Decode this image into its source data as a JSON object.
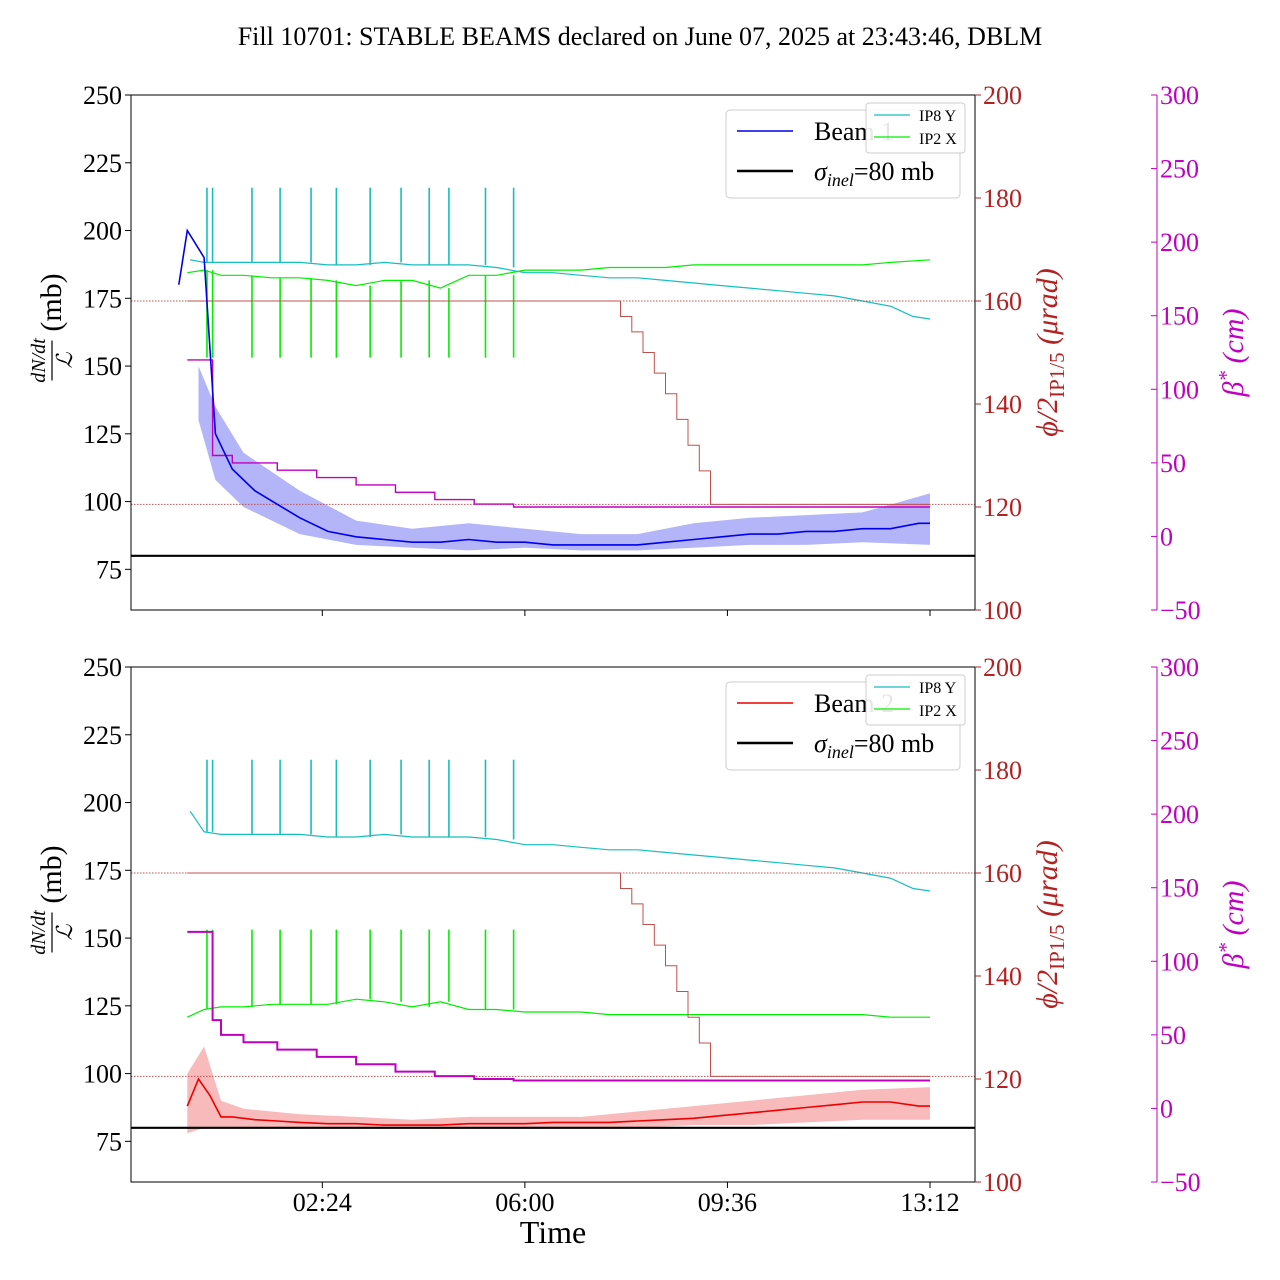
{
  "figure": {
    "title": "Fill 10701: STABLE BEAMS declared on June 07, 2025 at 23:43:46, DBLM",
    "xlabel": "Time",
    "x_ticks": [
      {
        "t": 2.4,
        "label": "02:24"
      },
      {
        "t": 6.0,
        "label": "06:00"
      },
      {
        "t": 9.6,
        "label": "09:36"
      },
      {
        "t": 13.2,
        "label": "13:12"
      }
    ],
    "left_ylabel": "dN/dt / ℒ (mb)",
    "left_ylabel_parts": {
      "numerator": "dN/dt",
      "denominator": "ℒ",
      "unit": "(mb)"
    },
    "right1_ylabel": "ϕ/2IP1/5 (μrad)",
    "right1_ylabel_parts": {
      "main": "ϕ/2",
      "sub": "IP1/5",
      "unit": "(μrad)"
    },
    "right2_ylabel": "β* (cm)",
    "right2_ylabel_parts": {
      "main": "β",
      "sup": "*",
      "unit": "(cm)"
    },
    "sigma_label_parts": {
      "sym": "σ",
      "sub": "inel",
      "rest": "=80 mb"
    }
  },
  "colors": {
    "beam1": "#0000ee",
    "beam1_band": "#9b9bf5",
    "beam2": "#ee0000",
    "beam2_band": "#f5a3a3",
    "ip8": "#17bebe",
    "ip2": "#00ee00",
    "crossing": "#c0504d",
    "crossing_axis": "#b22222",
    "beta": "#c000c0",
    "sigma": "#000000"
  },
  "chart_data": [
    {
      "type": "line",
      "panel": "top",
      "x_unit": "hours",
      "left_axis": {
        "ylim": [
          60,
          250
        ],
        "ticks": [
          75,
          100,
          125,
          150,
          175,
          200,
          225,
          250
        ]
      },
      "right_axis_1": {
        "ylim": [
          100,
          200
        ],
        "ticks": [
          100,
          120,
          140,
          160,
          180,
          200
        ]
      },
      "right_axis_2": {
        "ylim": [
          -50,
          300
        ],
        "ticks": [
          -50,
          0,
          50,
          100,
          150,
          200,
          250,
          300
        ]
      },
      "legend_main": [
        "Beam 1",
        "σinel=80 mb"
      ],
      "legend_small": [
        "IP8 Y",
        "IP2 X"
      ],
      "series": [
        {
          "name": "Beam 1",
          "axis": "left",
          "role": "beam",
          "x": [
            -0.15,
            0.0,
            0.3,
            0.5,
            0.8,
            1.2,
            1.6,
            2.0,
            2.5,
            3.0,
            3.5,
            4.0,
            4.5,
            5.0,
            5.5,
            6.0,
            6.5,
            7.0,
            7.5,
            8.0,
            8.5,
            9.0,
            9.5,
            10.0,
            10.5,
            11.0,
            11.5,
            12.0,
            12.5,
            13.0,
            13.2
          ],
          "y": [
            180,
            200,
            190,
            125,
            112,
            104,
            99,
            94,
            89,
            87,
            86,
            85,
            85,
            86,
            85,
            85,
            84,
            84,
            84,
            84,
            85,
            86,
            87,
            88,
            88,
            89,
            89,
            90,
            90,
            92,
            92
          ]
        },
        {
          "name": "Beam 1 band upper",
          "axis": "left",
          "role": "band_upper",
          "x": [
            0.2,
            0.5,
            1.0,
            2.0,
            3.0,
            4.0,
            5.0,
            6.0,
            7.0,
            8.0,
            9.0,
            10.0,
            11.0,
            12.0,
            13.2
          ],
          "y": [
            150,
            135,
            118,
            104,
            93,
            90,
            92,
            90,
            88,
            88,
            92,
            94,
            95,
            96,
            103
          ]
        },
        {
          "name": "Beam 1 band lower",
          "axis": "left",
          "role": "band_lower",
          "x": [
            0.2,
            0.5,
            1.0,
            2.0,
            3.0,
            4.0,
            5.0,
            6.0,
            7.0,
            8.0,
            9.0,
            10.0,
            11.0,
            12.0,
            13.2
          ],
          "y": [
            130,
            108,
            98,
            88,
            84,
            83,
            82,
            83,
            82,
            82,
            83,
            84,
            84,
            85,
            84
          ]
        },
        {
          "name": "IP8 Y",
          "axis": "right1",
          "role": "ip8",
          "x": [
            0.05,
            0.3,
            0.6,
            1.0,
            1.5,
            2.0,
            2.5,
            3.0,
            3.5,
            4.0,
            4.5,
            5.0,
            5.5,
            6.0,
            6.5,
            7.0,
            7.5,
            8.0,
            8.5,
            9.0,
            9.5,
            10.0,
            10.5,
            11.0,
            11.5,
            12.0,
            12.5,
            12.9,
            13.2
          ],
          "y": [
            168,
            167.5,
            167.5,
            167.5,
            167.5,
            167.5,
            167,
            167,
            167.5,
            167,
            167,
            167,
            166.5,
            165.5,
            165.5,
            165,
            164.5,
            164.5,
            164,
            163.5,
            163,
            162.5,
            162,
            161.5,
            161,
            160,
            159,
            157,
            156.5
          ],
          "spike_x": [
            0.35,
            0.45,
            1.15,
            1.65,
            2.2,
            2.65,
            3.25,
            3.8,
            4.3,
            4.65,
            5.3,
            5.8
          ],
          "spike_y": 182
        },
        {
          "name": "IP2 X",
          "axis": "right1",
          "role": "ip2",
          "x": [
            0.0,
            0.3,
            0.6,
            1.0,
            1.5,
            2.0,
            2.5,
            3.0,
            3.5,
            4.0,
            4.5,
            5.0,
            5.5,
            6.0,
            6.5,
            7.0,
            7.5,
            8.0,
            8.5,
            9.0,
            9.5,
            10.0,
            10.5,
            11.0,
            11.5,
            12.0,
            12.5,
            13.2
          ],
          "y": [
            165.5,
            166,
            165,
            165,
            164.5,
            164.5,
            164,
            163,
            164,
            164,
            162.5,
            165,
            165,
            166,
            166,
            166,
            166.5,
            166.5,
            166.5,
            167,
            167,
            167,
            167,
            167,
            167,
            167,
            167.5,
            168
          ],
          "spike_x": [
            0.35,
            0.45,
            1.15,
            1.65,
            2.2,
            2.65,
            3.25,
            3.8,
            4.3,
            4.65,
            5.3,
            5.8
          ],
          "spike_y": 149
        },
        {
          "name": "crossing angle",
          "axis": "right1",
          "role": "crossing",
          "x": [
            0.0,
            7.6,
            7.7,
            7.9,
            8.1,
            8.3,
            8.5,
            8.7,
            8.9,
            9.1,
            9.3,
            13.2
          ],
          "y": [
            160,
            160,
            157,
            154,
            150,
            146,
            142,
            137,
            132,
            127,
            120.5,
            120.5
          ]
        },
        {
          "name": "beta*",
          "axis": "right2",
          "role": "beta",
          "x": [
            0.0,
            0.3,
            0.45,
            0.8,
            1.6,
            2.3,
            3.0,
            3.7,
            4.4,
            5.1,
            5.8,
            13.2
          ],
          "y": [
            120,
            120,
            55,
            50,
            45,
            40,
            35,
            30,
            25,
            22,
            20,
            20
          ]
        }
      ],
      "hlines": [
        {
          "name": "σinel=80 mb",
          "axis": "left",
          "y": 80,
          "style": "solid"
        },
        {
          "name": "crossing reference 160",
          "axis": "right1",
          "y": 160,
          "style": "dotted"
        },
        {
          "name": "crossing reference 120.5",
          "axis": "right1",
          "y": 120.5,
          "style": "dotted"
        }
      ]
    },
    {
      "type": "line",
      "panel": "bottom",
      "x_unit": "hours",
      "left_axis": {
        "ylim": [
          60,
          250
        ],
        "ticks": [
          75,
          100,
          125,
          150,
          175,
          200,
          225,
          250
        ]
      },
      "right_axis_1": {
        "ylim": [
          100,
          200
        ],
        "ticks": [
          100,
          120,
          140,
          160,
          180,
          200
        ]
      },
      "right_axis_2": {
        "ylim": [
          -50,
          300
        ],
        "ticks": [
          -50,
          0,
          50,
          100,
          150,
          200,
          250,
          300
        ]
      },
      "legend_main": [
        "Beam 2",
        "σinel=80 mb"
      ],
      "legend_small": [
        "IP8 Y",
        "IP2 X"
      ],
      "series": [
        {
          "name": "Beam 2",
          "axis": "left",
          "role": "beam",
          "x": [
            0.0,
            0.2,
            0.4,
            0.6,
            0.8,
            1.2,
            1.6,
            2.0,
            2.5,
            3.0,
            3.5,
            4.0,
            4.5,
            5.0,
            5.5,
            6.0,
            6.5,
            7.0,
            7.5,
            8.0,
            8.5,
            9.0,
            9.5,
            10.0,
            10.5,
            11.0,
            11.5,
            12.0,
            12.5,
            13.0,
            13.2
          ],
          "y": [
            88,
            98,
            92,
            84,
            84,
            83,
            82.5,
            82,
            81.5,
            81.5,
            81,
            81,
            81,
            81.5,
            81.5,
            81.5,
            82,
            82,
            82,
            82.5,
            83,
            83.5,
            84.5,
            85.5,
            86.5,
            87.5,
            88.5,
            89.5,
            89.5,
            88,
            88
          ]
        },
        {
          "name": "Beam 2 band upper",
          "axis": "left",
          "role": "band_upper",
          "x": [
            0.0,
            0.3,
            0.6,
            1.0,
            2.0,
            3.0,
            4.0,
            5.0,
            6.0,
            7.0,
            8.0,
            9.0,
            10.0,
            11.0,
            12.0,
            13.2
          ],
          "y": [
            100,
            110,
            90,
            87,
            85,
            84,
            83,
            84,
            84,
            84,
            86,
            88,
            90,
            92,
            94,
            95
          ]
        },
        {
          "name": "Beam 2 band lower",
          "axis": "left",
          "role": "band_lower",
          "x": [
            0.0,
            0.3,
            0.6,
            1.0,
            2.0,
            3.0,
            4.0,
            5.0,
            6.0,
            7.0,
            8.0,
            9.0,
            10.0,
            11.0,
            12.0,
            13.2
          ],
          "y": [
            78,
            80,
            80,
            80,
            80,
            80,
            80,
            80,
            80,
            80,
            80,
            81,
            81,
            82,
            83,
            83
          ]
        },
        {
          "name": "IP8 Y",
          "axis": "right1",
          "role": "ip8",
          "x": [
            0.05,
            0.3,
            0.6,
            1.0,
            1.5,
            2.0,
            2.5,
            3.0,
            3.5,
            4.0,
            4.5,
            5.0,
            5.5,
            6.0,
            6.5,
            7.0,
            7.5,
            8.0,
            8.5,
            9.0,
            9.5,
            10.0,
            10.5,
            11.0,
            11.5,
            12.0,
            12.5,
            12.9,
            13.2
          ],
          "y": [
            172,
            168,
            167.5,
            167.5,
            167.5,
            167.5,
            167,
            167,
            167.5,
            167,
            167,
            167,
            166.5,
            165.5,
            165.5,
            165,
            164.5,
            164.5,
            164,
            163.5,
            163,
            162.5,
            162,
            161.5,
            161,
            160,
            159,
            157,
            156.5
          ],
          "spike_x": [
            0.35,
            0.45,
            1.15,
            1.65,
            2.2,
            2.65,
            3.25,
            3.8,
            4.3,
            4.65,
            5.3,
            5.8
          ],
          "spike_y": 182
        },
        {
          "name": "IP2 X",
          "axis": "right1",
          "role": "ip2",
          "x": [
            0.0,
            0.3,
            0.6,
            1.0,
            1.5,
            2.0,
            2.5,
            3.0,
            3.5,
            4.0,
            4.5,
            5.0,
            5.5,
            6.0,
            6.5,
            7.0,
            7.5,
            8.0,
            8.5,
            9.0,
            9.5,
            10.0,
            10.5,
            11.0,
            11.5,
            12.0,
            12.5,
            13.2
          ],
          "y": [
            132,
            133.5,
            134,
            134,
            134.5,
            134.5,
            134.5,
            135.5,
            135,
            134,
            135,
            133.5,
            133.5,
            133,
            133,
            133,
            132.5,
            132.5,
            132.5,
            132.5,
            132.5,
            132.5,
            132.5,
            132.5,
            132.5,
            132.5,
            132,
            132
          ],
          "spike_x": [
            0.35,
            0.45,
            1.15,
            1.65,
            2.2,
            2.65,
            3.25,
            3.8,
            4.3,
            4.65,
            5.3,
            5.8
          ],
          "spike_y": 149
        },
        {
          "name": "crossing angle",
          "axis": "right1",
          "role": "crossing",
          "x": [
            0.0,
            7.6,
            7.7,
            7.9,
            8.1,
            8.3,
            8.5,
            8.7,
            8.9,
            9.1,
            9.3,
            13.2
          ],
          "y": [
            160,
            160,
            157,
            154,
            150,
            146,
            142,
            137,
            132,
            127,
            120.5,
            120.5
          ]
        },
        {
          "name": "beta*",
          "axis": "right2",
          "role": "beta",
          "x": [
            0.0,
            0.25,
            0.45,
            0.6,
            1.0,
            1.6,
            2.3,
            3.0,
            3.7,
            4.4,
            5.1,
            5.8,
            13.2
          ],
          "y": [
            120,
            120,
            60,
            50,
            45,
            40,
            35,
            30,
            25,
            22,
            20,
            19,
            19
          ]
        }
      ],
      "hlines": [
        {
          "name": "σinel=80 mb",
          "axis": "left",
          "y": 80,
          "style": "solid"
        },
        {
          "name": "crossing reference 160",
          "axis": "right1",
          "y": 160,
          "style": "dotted"
        },
        {
          "name": "crossing reference 120.5",
          "axis": "right1",
          "y": 120.5,
          "style": "dotted"
        }
      ]
    }
  ]
}
